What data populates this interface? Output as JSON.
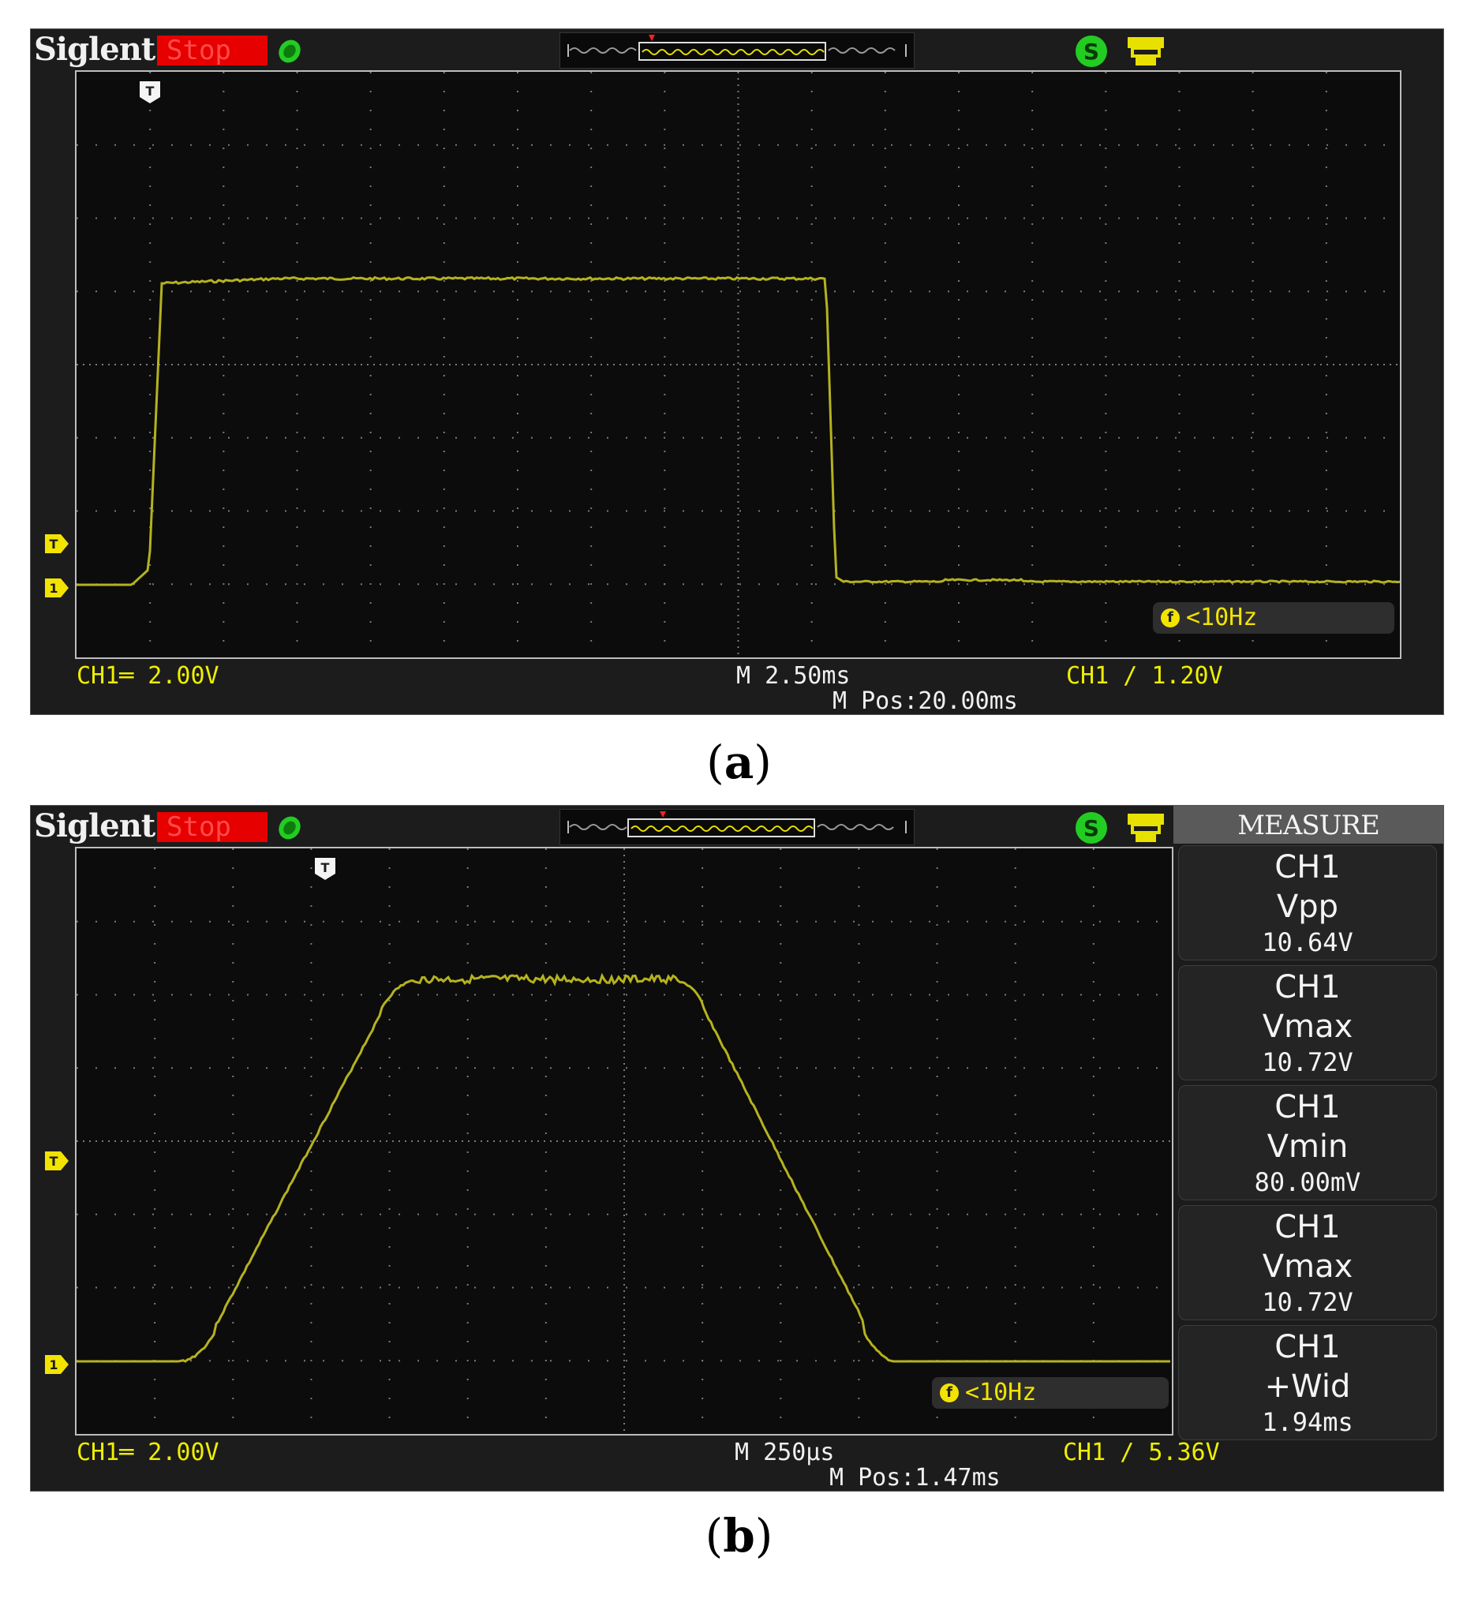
{
  "panels": {
    "a": {
      "brand": "Siglent",
      "run_state": "Stop",
      "trigger_marker": "T",
      "channel_marker": "1",
      "frequency": "<10Hz",
      "ch_scale": "CH1═ 2.00V",
      "timebase": "M 2.50ms",
      "position": "M Pos:20.00ms",
      "trigger": "CH1 ∕ 1.20V",
      "caption_letter": "a"
    },
    "b": {
      "brand": "Siglent",
      "run_state": "Stop",
      "trigger_marker": "T",
      "channel_marker": "1",
      "frequency": "<10Hz",
      "ch_scale": "CH1═ 2.00V",
      "timebase": "M 250μs",
      "position": "M Pos:1.47ms",
      "trigger": "CH1 ∕ 5.36V",
      "caption_letter": "b",
      "measure": {
        "title": "MEASURE",
        "items": [
          {
            "channel": "CH1",
            "param": "Vpp",
            "value": "10.64V"
          },
          {
            "channel": "CH1",
            "param": "Vmax",
            "value": "10.72V"
          },
          {
            "channel": "CH1",
            "param": "Vmin",
            "value": "80.00mV"
          },
          {
            "channel": "CH1",
            "param": "Vmax",
            "value": "10.72V"
          },
          {
            "channel": "CH1",
            "param": "+Wid",
            "value": "1.94ms"
          }
        ]
      }
    }
  },
  "colors": {
    "trace": "#b5b21f",
    "marker_yellow": "#f2e400",
    "stop_red": "#e60000",
    "run_green": "#22cc22"
  },
  "icons": [
    "run-icon",
    "usb-icon",
    "printer-icon",
    "memory-depth-bar"
  ]
}
